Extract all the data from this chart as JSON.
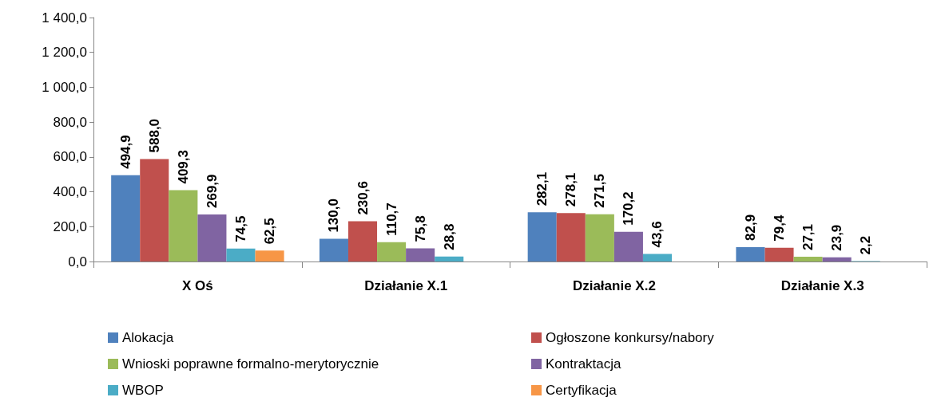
{
  "chart_data": {
    "type": "bar",
    "categories": [
      "X Oś",
      "Działanie X.1",
      "Działanie X.2",
      "Działanie X.3"
    ],
    "series": [
      {
        "name": "Alokacja",
        "color": "#4f81bd",
        "values": [
          494.9,
          130.0,
          282.1,
          82.9
        ],
        "value_labels": [
          "494,9",
          "130,0",
          "282,1",
          "82,9"
        ]
      },
      {
        "name": "Ogłoszone konkursy/nabory",
        "color": "#c0504d",
        "values": [
          588.0,
          230.6,
          278.1,
          79.4
        ],
        "value_labels": [
          "588,0",
          "230,6",
          "278,1",
          "79,4"
        ]
      },
      {
        "name": "Wnioski poprawne formalno-merytorycznie",
        "color": "#9bbb59",
        "values": [
          409.3,
          110.7,
          271.5,
          27.1
        ],
        "value_labels": [
          "409,3",
          "110,7",
          "271,5",
          "27,1"
        ]
      },
      {
        "name": "Kontraktacja",
        "color": "#8064a2",
        "values": [
          269.9,
          75.8,
          170.2,
          23.9
        ],
        "value_labels": [
          "269,9",
          "75,8",
          "170,2",
          "23,9"
        ]
      },
      {
        "name": "WBOP",
        "color": "#4bacc6",
        "values": [
          74.5,
          28.8,
          43.6,
          2.2
        ],
        "value_labels": [
          "74,5",
          "28,8",
          "43,6",
          "2,2"
        ]
      },
      {
        "name": "Certyfikacja",
        "color": "#f79646",
        "values": [
          62.5,
          null,
          null,
          null
        ],
        "value_labels": [
          "62,5",
          null,
          null,
          null
        ]
      }
    ],
    "ylim": [
      0,
      1400
    ],
    "yticks": [
      {
        "value": 0,
        "label": "0,0"
      },
      {
        "value": 200,
        "label": "200,0"
      },
      {
        "value": 400,
        "label": "400,0"
      },
      {
        "value": 600,
        "label": "600,0"
      },
      {
        "value": 800,
        "label": "800,0"
      },
      {
        "value": 1000,
        "label": "1 000,0"
      },
      {
        "value": 1200,
        "label": "1 200,0"
      },
      {
        "value": 1400,
        "label": "1 400,0"
      }
    ],
    "grid": false,
    "legend": "bottom"
  }
}
